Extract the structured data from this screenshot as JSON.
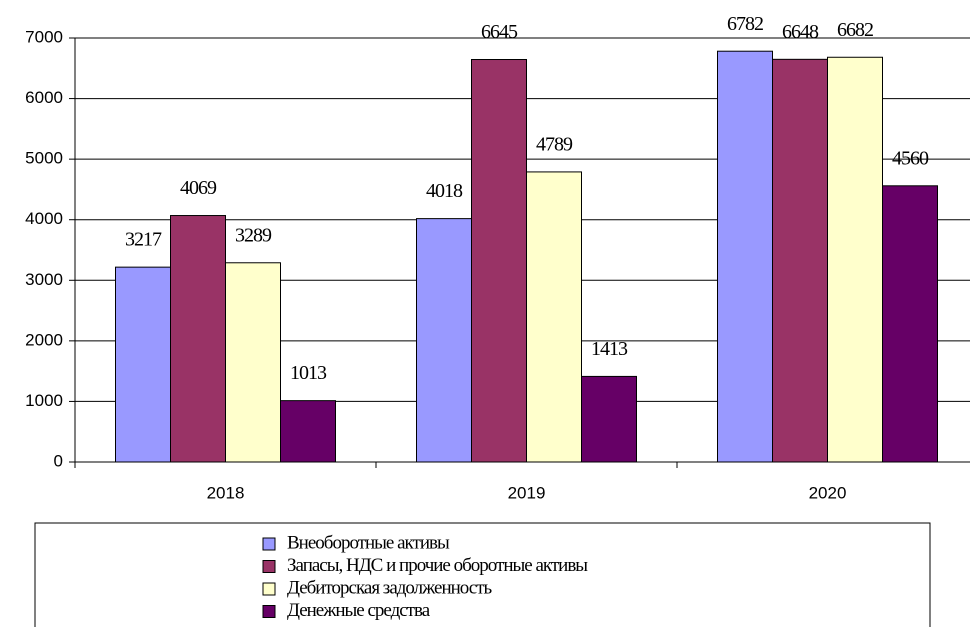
{
  "chart_data": {
    "type": "bar",
    "categories": [
      "2018",
      "2019",
      "2020"
    ],
    "series": [
      {
        "name": "Внеоборотные активы",
        "color": "#9999ff",
        "values": [
          3217,
          4018,
          6782
        ]
      },
      {
        "name": "Запасы, НДС и прочие оборотные активы",
        "color": "#993366",
        "values": [
          4069,
          6645,
          6648
        ]
      },
      {
        "name": "Дебиторская задолженность",
        "color": "#ffffcc",
        "values": [
          3289,
          4789,
          6682
        ]
      },
      {
        "name": "Денежные средства",
        "color": "#660066",
        "values": [
          1013,
          1413,
          4560
        ]
      }
    ],
    "ylim": [
      0,
      7000
    ],
    "yticks": [
      0,
      1000,
      2000,
      3000,
      4000,
      5000,
      6000,
      7000
    ],
    "grid": true,
    "legend": "bottom"
  }
}
